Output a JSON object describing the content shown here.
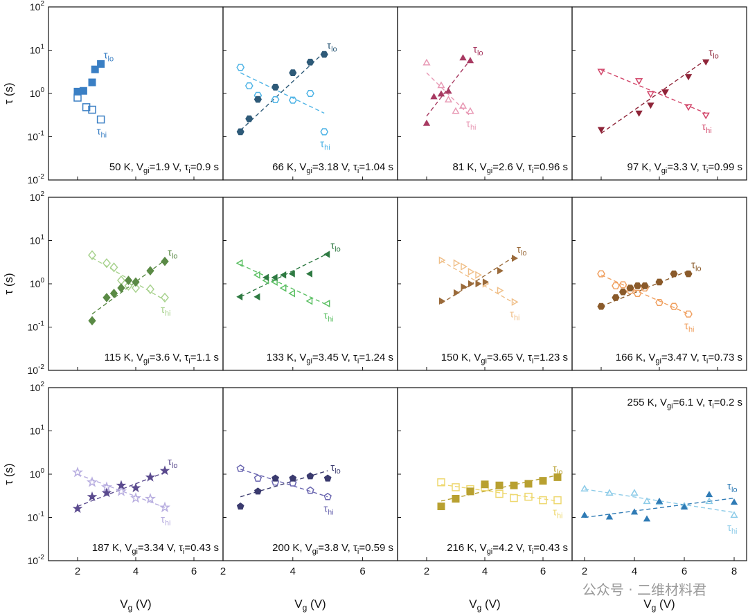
{
  "figure": {
    "y_axis_label": "τ (s)",
    "x_axis_label": "Vg (V)",
    "watermark": "公众号 · 二维材料君"
  },
  "chart_data": [
    {
      "type": "scatter",
      "label": "50 K, Vgi=1.9 V, τi=0.9 s",
      "label_parts": [
        "50 K",
        "1.9 V",
        "0.9 s"
      ],
      "color": "#3a7fc4",
      "marker": "square",
      "xlim": [
        1,
        7
      ],
      "ylim": [
        0.01,
        100
      ],
      "yscale": "log",
      "xticks": [
        2,
        4,
        6
      ],
      "lo": [
        [
          2,
          1.1
        ],
        [
          2.2,
          1.15
        ],
        [
          2.5,
          1.8
        ],
        [
          2.6,
          3.6
        ],
        [
          2.8,
          4.8
        ]
      ],
      "hi": [
        [
          2,
          0.8
        ],
        [
          2.3,
          0.48
        ],
        [
          2.5,
          0.42
        ],
        [
          2.8,
          0.25
        ]
      ],
      "fit_lo": false,
      "fit_hi": false
    },
    {
      "type": "scatter",
      "label": "66 K, Vgi=3.18 V, τi=1.04 s",
      "label_parts": [
        "66 K",
        "3.18 V",
        "1.04 s"
      ],
      "color": "#2e5a78",
      "color_hi": "#4fb4e6",
      "marker": "hexagon",
      "xlim": [
        2,
        7
      ],
      "ylim": [
        0.01,
        100
      ],
      "yscale": "log",
      "xticks": [
        2,
        4,
        6
      ],
      "lo": [
        [
          2.5,
          0.13
        ],
        [
          2.75,
          0.26
        ],
        [
          3,
          0.73
        ],
        [
          3.5,
          1.4
        ],
        [
          4,
          3
        ],
        [
          4.5,
          5.3
        ],
        [
          4.9,
          8
        ]
      ],
      "hi": [
        [
          2.5,
          4
        ],
        [
          2.75,
          1.5
        ],
        [
          3,
          0.9
        ],
        [
          3.5,
          0.72
        ],
        [
          4,
          0.7
        ],
        [
          4.5,
          1
        ],
        [
          4.9,
          0.13
        ]
      ],
      "fit_lo": [
        [
          2.5,
          0.14
        ],
        [
          4.9,
          9
        ]
      ],
      "fit_hi": [
        [
          2.5,
          3
        ],
        [
          4.9,
          0.35
        ]
      ]
    },
    {
      "type": "scatter",
      "label": "81 K, Vgi=2.6 V, τi=0.96 s",
      "label_parts": [
        "81 K",
        "2.6 V",
        "0.96 s"
      ],
      "color": "#a83a62",
      "color_hi": "#e89ab5",
      "marker": "triangle-up",
      "xlim": [
        1,
        7
      ],
      "ylim": [
        0.01,
        100
      ],
      "yscale": "log",
      "xticks": [
        2,
        4,
        6
      ],
      "lo": [
        [
          2,
          0.2
        ],
        [
          2.25,
          0.82
        ],
        [
          2.5,
          0.95
        ],
        [
          2.75,
          1.1
        ],
        [
          3.25,
          6.5
        ],
        [
          3.5,
          5.6
        ]
      ],
      "hi": [
        [
          2,
          5
        ],
        [
          2.5,
          1.5
        ],
        [
          2.75,
          0.7
        ],
        [
          3,
          0.38
        ],
        [
          3.25,
          0.5
        ],
        [
          3.5,
          0.38
        ]
      ],
      "fit_lo": [
        [
          2,
          0.3
        ],
        [
          3.5,
          6
        ]
      ],
      "fit_hi": [
        [
          2,
          3
        ],
        [
          3.5,
          0.3
        ]
      ]
    },
    {
      "type": "scatter",
      "label": "97 K, Vgi=3.3 V, τi=0.99 s",
      "label_parts": [
        "97 K",
        "3.3 V",
        "0.99 s"
      ],
      "color": "#8e2438",
      "color_hi": "#d2466a",
      "marker": "triangle-down",
      "xlim": [
        1,
        7
      ],
      "ylim": [
        0.01,
        100
      ],
      "yscale": "log",
      "xticks": [
        2,
        4,
        6
      ],
      "lo": [
        [
          2,
          0.15
        ],
        [
          3.3,
          0.36
        ],
        [
          3.7,
          0.55
        ],
        [
          4.2,
          1.1
        ],
        [
          5,
          2.5
        ],
        [
          5.6,
          5.5
        ]
      ],
      "hi": [
        [
          2,
          3.3
        ],
        [
          3.3,
          2
        ],
        [
          3.7,
          1
        ],
        [
          4.2,
          1.1
        ],
        [
          5,
          0.5
        ],
        [
          5.6,
          0.32
        ]
      ],
      "fit_lo": [
        [
          2,
          0.12
        ],
        [
          5.6,
          6
        ]
      ],
      "fit_hi": [
        [
          2,
          3.5
        ],
        [
          5.6,
          0.35
        ]
      ]
    },
    {
      "type": "scatter",
      "label": "115 K, Vgi=3.6 V, τi=1.1 s",
      "label_parts": [
        "115 K",
        "3.6 V",
        "1.1 s"
      ],
      "color": "#5a8a45",
      "color_hi": "#a8d28e",
      "marker": "diamond",
      "xlim": [
        1,
        7
      ],
      "ylim": [
        0.01,
        100
      ],
      "yscale": "log",
      "xticks": [
        2,
        4,
        6
      ],
      "lo": [
        [
          2.5,
          0.14
        ],
        [
          3,
          0.48
        ],
        [
          3.25,
          0.6
        ],
        [
          3.5,
          0.8
        ],
        [
          3.75,
          1.2
        ],
        [
          4,
          1.1
        ],
        [
          4.5,
          2
        ],
        [
          5,
          3.3
        ]
      ],
      "hi": [
        [
          2.5,
          4.6
        ],
        [
          3,
          3
        ],
        [
          3.25,
          2.4
        ],
        [
          3.5,
          1.2
        ],
        [
          3.75,
          0.9
        ],
        [
          4,
          0.8
        ],
        [
          4.5,
          0.75
        ],
        [
          5,
          0.48
        ]
      ],
      "fit_lo": [
        [
          2.5,
          0.2
        ],
        [
          5,
          3.5
        ]
      ],
      "fit_hi": [
        [
          2.5,
          4
        ],
        [
          5,
          0.42
        ]
      ]
    },
    {
      "type": "scatter",
      "label": "133 K, Vgi=3.45 V, τi=1.24 s",
      "label_parts": [
        "133 K",
        "3.45 V",
        "1.24 s"
      ],
      "color": "#2e7a42",
      "color_hi": "#5cc064",
      "marker": "triangle-left",
      "xlim": [
        2,
        7
      ],
      "ylim": [
        0.01,
        100
      ],
      "yscale": "log",
      "xticks": [
        2,
        4,
        6
      ],
      "lo": [
        [
          2.5,
          0.5
        ],
        [
          3,
          0.5
        ],
        [
          3.25,
          1.4
        ],
        [
          3.5,
          1.4
        ],
        [
          3.75,
          1.6
        ],
        [
          4,
          1.7
        ],
        [
          4.5,
          1.7
        ],
        [
          5,
          4.8
        ]
      ],
      "hi": [
        [
          2.5,
          3
        ],
        [
          3,
          1.6
        ],
        [
          3.25,
          1.2
        ],
        [
          3.5,
          1.1
        ],
        [
          3.75,
          0.8
        ],
        [
          4,
          0.6
        ],
        [
          4.5,
          0.4
        ],
        [
          5,
          0.35
        ]
      ],
      "fit_lo": [
        [
          2.5,
          0.5
        ],
        [
          5,
          5
        ]
      ],
      "fit_hi": [
        [
          2.5,
          2.8
        ],
        [
          5,
          0.32
        ]
      ]
    },
    {
      "type": "scatter",
      "label": "150 K, Vgi=3.65 V, τi=1.23 s",
      "label_parts": [
        "150 K",
        "3.65 V",
        "1.23 s"
      ],
      "color": "#9a6a3a",
      "color_hi": "#f0c08a",
      "marker": "triangle-right",
      "xlim": [
        1,
        7
      ],
      "ylim": [
        0.01,
        100
      ],
      "yscale": "log",
      "xticks": [
        2,
        4,
        6
      ],
      "lo": [
        [
          2.5,
          0.4
        ],
        [
          3,
          0.62
        ],
        [
          3.25,
          0.85
        ],
        [
          3.5,
          1
        ],
        [
          3.75,
          1
        ],
        [
          4,
          1.1
        ],
        [
          4.5,
          2
        ],
        [
          5,
          3.9
        ]
      ],
      "hi": [
        [
          2.5,
          3.5
        ],
        [
          3,
          3
        ],
        [
          3.25,
          2.5
        ],
        [
          3.5,
          1.9
        ],
        [
          3.75,
          1.6
        ],
        [
          4,
          1
        ],
        [
          4.5,
          0.7
        ],
        [
          5,
          0.38
        ]
      ],
      "fit_lo": [
        [
          2.5,
          0.35
        ],
        [
          5,
          4.2
        ]
      ],
      "fit_hi": [
        [
          2.5,
          3.4
        ],
        [
          5,
          0.36
        ]
      ]
    },
    {
      "type": "scatter",
      "label": "166 K, Vgi=3.47 V, τi=0.73 s",
      "label_parts": [
        "166 K",
        "3.47 V",
        "0.73 s"
      ],
      "color": "#8a5a2a",
      "color_hi": "#f0a060",
      "marker": "hexagon",
      "xlim": [
        1,
        7
      ],
      "ylim": [
        0.01,
        100
      ],
      "yscale": "log",
      "xticks": [
        2,
        4,
        6
      ],
      "lo": [
        [
          2,
          0.3
        ],
        [
          2.5,
          0.48
        ],
        [
          2.75,
          0.65
        ],
        [
          3,
          0.8
        ],
        [
          3.25,
          0.9
        ],
        [
          3.5,
          0.9
        ],
        [
          4,
          1.1
        ],
        [
          4.5,
          1.7
        ],
        [
          5,
          1.7
        ]
      ],
      "hi": [
        [
          2,
          1.7
        ],
        [
          2.5,
          0.9
        ],
        [
          2.75,
          0.95
        ],
        [
          3,
          0.7
        ],
        [
          3.25,
          0.6
        ],
        [
          3.5,
          0.8
        ],
        [
          4,
          0.37
        ],
        [
          4.5,
          0.3
        ],
        [
          5,
          0.2
        ]
      ],
      "fit_lo": [
        [
          2,
          0.3
        ],
        [
          5,
          2
        ]
      ],
      "fit_hi": [
        [
          2,
          1.6
        ],
        [
          5,
          0.2
        ]
      ]
    },
    {
      "type": "scatter",
      "label": "187 K, Vgi=3.34 V, τi=0.43 s",
      "label_parts": [
        "187 K",
        "3.34 V",
        "0.43 s"
      ],
      "color": "#5a4a8e",
      "color_hi": "#b8aee0",
      "marker": "star",
      "xlim": [
        1,
        7
      ],
      "ylim": [
        0.01,
        100
      ],
      "yscale": "log",
      "xticks": [
        2,
        4,
        6
      ],
      "lo": [
        [
          2,
          0.16
        ],
        [
          2.5,
          0.3
        ],
        [
          3,
          0.37
        ],
        [
          3.5,
          0.55
        ],
        [
          4,
          0.48
        ],
        [
          4.5,
          0.85
        ],
        [
          5,
          1.2
        ]
      ],
      "hi": [
        [
          2,
          1.1
        ],
        [
          2.5,
          0.65
        ],
        [
          3,
          0.5
        ],
        [
          3.5,
          0.4
        ],
        [
          4,
          0.28
        ],
        [
          4.5,
          0.27
        ],
        [
          5,
          0.17
        ]
      ],
      "fit_lo": [
        [
          2,
          0.18
        ],
        [
          5,
          1.1
        ]
      ],
      "fit_hi": [
        [
          2,
          1
        ],
        [
          5,
          0.17
        ]
      ]
    },
    {
      "type": "scatter",
      "label": "200 K, Vgi=3.8 V, τi=0.59 s",
      "label_parts": [
        "200 K",
        "3.8 V",
        "0.59 s"
      ],
      "color": "#3a3a6e",
      "color_hi": "#6a66b0",
      "marker": "pentagon",
      "xlim": [
        2,
        7
      ],
      "ylim": [
        0.01,
        100
      ],
      "yscale": "log",
      "xticks": [
        2,
        4,
        6
      ],
      "lo": [
        [
          2.5,
          0.18
        ],
        [
          3,
          0.4
        ],
        [
          3.5,
          0.8
        ],
        [
          4,
          0.8
        ],
        [
          4.5,
          0.9
        ],
        [
          5,
          0.8
        ]
      ],
      "hi": [
        [
          2.5,
          1.35
        ],
        [
          3,
          0.8
        ],
        [
          3.5,
          0.65
        ],
        [
          4,
          0.62
        ],
        [
          4.5,
          0.42
        ],
        [
          5,
          0.3
        ]
      ],
      "fit_lo": [
        [
          2.5,
          0.3
        ],
        [
          5,
          1.2
        ]
      ],
      "fit_hi": [
        [
          2.5,
          1.3
        ],
        [
          5,
          0.3
        ]
      ]
    },
    {
      "type": "scatter",
      "label": "216 K, Vgi=4.2 V, τi=0.43 s",
      "label_parts": [
        "216 K",
        "4.2 V",
        "0.43 s"
      ],
      "color": "#b8a030",
      "color_hi": "#eed870",
      "marker": "square",
      "xlim": [
        1,
        7
      ],
      "ylim": [
        0.01,
        100
      ],
      "yscale": "log",
      "xticks": [
        2,
        4,
        6
      ],
      "lo": [
        [
          2.5,
          0.18
        ],
        [
          3,
          0.27
        ],
        [
          3.5,
          0.4
        ],
        [
          4,
          0.58
        ],
        [
          4.5,
          0.55
        ],
        [
          5,
          0.55
        ],
        [
          5.5,
          0.6
        ],
        [
          6,
          0.7
        ],
        [
          6.5,
          0.85
        ]
      ],
      "hi": [
        [
          2.5,
          0.65
        ],
        [
          3,
          0.5
        ],
        [
          3.5,
          0.45
        ],
        [
          4,
          0.5
        ],
        [
          4.5,
          0.35
        ],
        [
          5,
          0.28
        ],
        [
          5.5,
          0.3
        ],
        [
          6,
          0.25
        ],
        [
          6.5,
          0.25
        ]
      ],
      "fit_lo": [
        [
          2.5,
          0.24
        ],
        [
          6.5,
          0.95
        ]
      ],
      "fit_hi": [
        [
          2.5,
          0.58
        ],
        [
          6.5,
          0.24
        ]
      ]
    },
    {
      "type": "scatter",
      "label": "255 K, Vgi=6.1 V, τi=0.2 s",
      "label_parts": [
        "255 K",
        "6.1 V",
        "0.2 s"
      ],
      "color": "#2f7bb5",
      "color_hi": "#8ccbe8",
      "marker": "triangle-up",
      "xlim": [
        1.5,
        8.5
      ],
      "ylim": [
        0.01,
        100
      ],
      "yscale": "log",
      "xticks": [
        2,
        4,
        6,
        8
      ],
      "lo": [
        [
          2,
          0.11
        ],
        [
          3,
          0.1
        ],
        [
          4,
          0.13
        ],
        [
          4.5,
          0.09
        ],
        [
          5,
          0.23
        ],
        [
          6,
          0.17
        ],
        [
          7,
          0.33
        ],
        [
          8,
          0.22
        ]
      ],
      "hi": [
        [
          2,
          0.45
        ],
        [
          3,
          0.36
        ],
        [
          4,
          0.36
        ],
        [
          4.5,
          0.23
        ],
        [
          5,
          0.22
        ],
        [
          6,
          0.18
        ],
        [
          7,
          0.23
        ],
        [
          8,
          0.11
        ]
      ],
      "fit_lo": [
        [
          2,
          0.1
        ],
        [
          8,
          0.28
        ]
      ],
      "fit_hi": [
        [
          2,
          0.45
        ],
        [
          8,
          0.13
        ]
      ]
    }
  ]
}
